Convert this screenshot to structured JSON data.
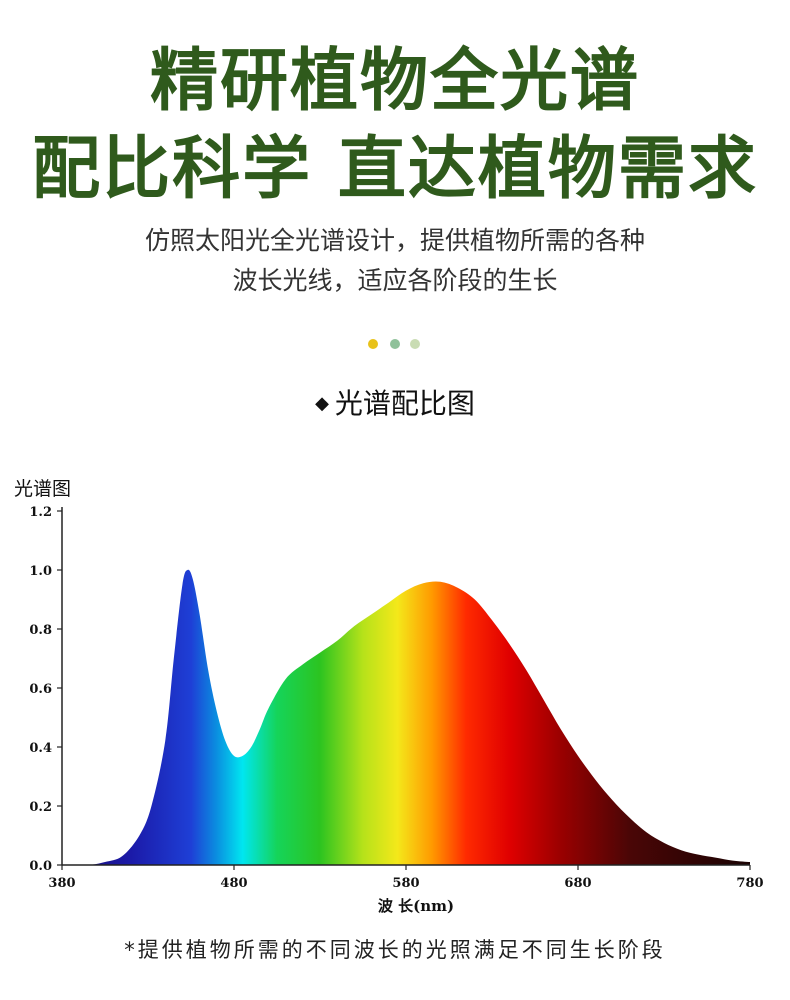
{
  "header": {
    "line1": "精研植物全光谱",
    "line2": "配比科学 直达植物需求",
    "subtitle_line1": "仿照太阳光全光谱设计，提供植物所需的各种",
    "subtitle_line2": "波长光线，适应各阶段的生长"
  },
  "dots": {
    "colors": [
      "#e8c21a",
      "#8fc19a",
      "#c9dcb3"
    ]
  },
  "section_title": "光谱配比图",
  "footer_note": "*提供植物所需的不同波长的光照满足不同生长阶段",
  "colors": {
    "headline": "#2f5a1c"
  },
  "chart_data": {
    "type": "area",
    "title": "光谱图",
    "xlabel": "波 长(nm)",
    "ylabel": "",
    "xlim": [
      380,
      780
    ],
    "ylim": [
      0,
      1.2
    ],
    "x_ticks": [
      380,
      480,
      580,
      680,
      780
    ],
    "x_tick_labels": [
      "380",
      "480",
      "580",
      "680",
      "780"
    ],
    "y_ticks": [
      0,
      0.2,
      0.4,
      0.6,
      0.8,
      1.0,
      1.2
    ],
    "y_tick_labels": [
      "0.0",
      "0.2",
      "0.4",
      "0.6",
      "0.8",
      "1.0",
      "1.2"
    ],
    "grid": false,
    "series": [
      {
        "x": [
          380,
          395,
          405,
          415,
          425,
          432,
          440,
          445,
          450,
          453,
          456,
          460,
          465,
          470,
          475,
          480,
          485,
          490,
          495,
          500,
          510,
          520,
          530,
          540,
          550,
          560,
          570,
          580,
          590,
          600,
          610,
          620,
          630,
          640,
          650,
          660,
          670,
          680,
          690,
          700,
          710,
          720,
          730,
          740,
          750,
          760,
          770,
          780
        ],
        "y": [
          0.0,
          0.0,
          0.01,
          0.03,
          0.1,
          0.2,
          0.42,
          0.7,
          0.95,
          1.0,
          0.97,
          0.85,
          0.66,
          0.52,
          0.42,
          0.37,
          0.37,
          0.4,
          0.46,
          0.53,
          0.63,
          0.68,
          0.72,
          0.76,
          0.81,
          0.85,
          0.89,
          0.93,
          0.955,
          0.96,
          0.94,
          0.9,
          0.83,
          0.75,
          0.66,
          0.56,
          0.46,
          0.37,
          0.29,
          0.22,
          0.16,
          0.11,
          0.075,
          0.05,
          0.035,
          0.025,
          0.015,
          0.01
        ]
      }
    ]
  }
}
